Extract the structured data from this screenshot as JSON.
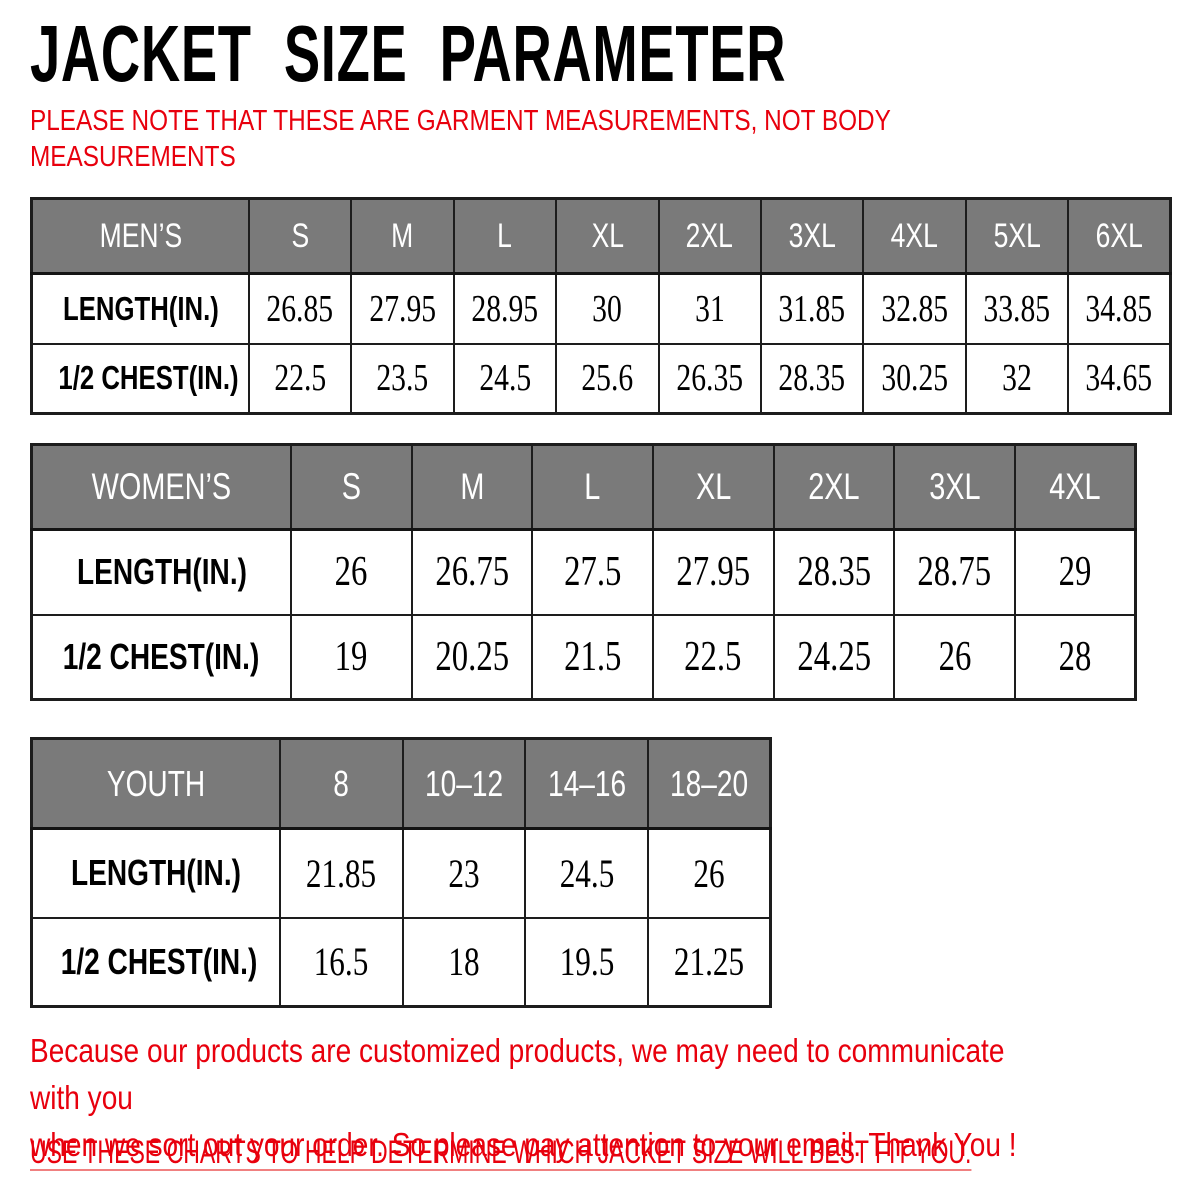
{
  "page": {
    "title": "JACKET SIZE PARAMETER",
    "note": "PLEASE NOTE THAT THESE ARE GARMENT MEASUREMENTS, NOT BODY\nMEASUREMENTS",
    "footer_paragraph": "Because our products are customized products, we may need to communicate with you\nwhen we sort out your order. So please pay attention to your email. Thank You !",
    "footer_instruction": "USE THESE CHARTS TO HELP DETERMINE WHICH JACKET SIZE WILL BEST FIT YOU."
  },
  "colors": {
    "accent_red": "#e8000d",
    "table_header_bg": "#7a7a7a",
    "table_header_text": "#ffffff",
    "table_border": "#1d1d1d",
    "text_black": "#000000",
    "background": "#ffffff"
  },
  "tables": [
    {
      "id": "mens",
      "corner_label": "MEN’S",
      "sizes": [
        "S",
        "M",
        "L",
        "XL",
        "2XL",
        "3XL",
        "4XL",
        "5XL",
        "6XL"
      ],
      "rows": [
        {
          "label": "LENGTH(IN.)",
          "values": [
            "26.85",
            "27.95",
            "28.95",
            "30",
            "31",
            "31.85",
            "32.85",
            "33.85",
            "34.85"
          ]
        },
        {
          "label": "1/2 CHEST(IN.)",
          "values": [
            "22.5",
            "23.5",
            "24.5",
            "25.6",
            "26.35",
            "28.35",
            "30.25",
            "32",
            "34.65"
          ]
        }
      ]
    },
    {
      "id": "womens",
      "corner_label": "WOMEN’S",
      "sizes": [
        "S",
        "M",
        "L",
        "XL",
        "2XL",
        "3XL",
        "4XL"
      ],
      "rows": [
        {
          "label": "LENGTH(IN.)",
          "values": [
            "26",
            "26.75",
            "27.5",
            "27.95",
            "28.35",
            "28.75",
            "29"
          ]
        },
        {
          "label": "1/2 CHEST(IN.)",
          "values": [
            "19",
            "20.25",
            "21.5",
            "22.5",
            "24.25",
            "26",
            "28"
          ]
        }
      ]
    },
    {
      "id": "youth",
      "corner_label": "YOUTH",
      "sizes": [
        "8",
        "10–12",
        "14–16",
        "18–20"
      ],
      "rows": [
        {
          "label": "LENGTH(IN.)",
          "values": [
            "21.85",
            "23",
            "24.5",
            "26"
          ]
        },
        {
          "label": "1/2 CHEST(IN.)",
          "values": [
            "16.5",
            "18",
            "19.5",
            "21.25"
          ]
        }
      ]
    }
  ]
}
